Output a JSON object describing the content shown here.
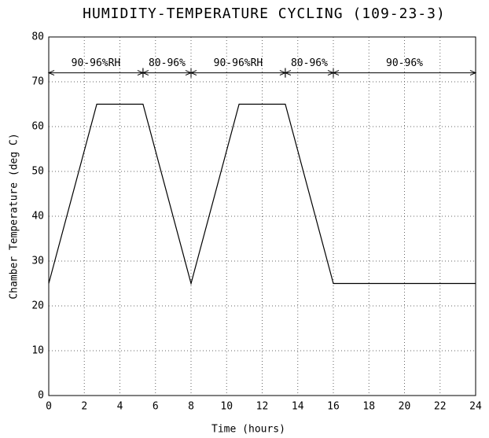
{
  "chart_data": {
    "type": "line",
    "title": "HUMIDITY-TEMPERATURE CYCLING (109-23-3)",
    "x_label": "Time (hours)",
    "y_label": "Chamber Temperature (deg C)",
    "x": [
      0,
      2.7,
      5.3,
      8,
      10.7,
      13.3,
      16,
      24
    ],
    "series": [
      {
        "name": "Chamber Temperature",
        "color": "#000000",
        "values": [
          25,
          65,
          65,
          25,
          65,
          65,
          25,
          25
        ]
      }
    ],
    "xlim": [
      0,
      24
    ],
    "xticks": [
      0,
      2,
      4,
      6,
      8,
      10,
      12,
      14,
      16,
      18,
      20,
      22,
      24
    ],
    "ylim": [
      0,
      80
    ],
    "yticks": [
      0,
      10,
      20,
      30,
      40,
      50,
      60,
      70,
      80
    ],
    "grid": true,
    "annotations": [
      {
        "text": "90-96%RH",
        "x": [
          0,
          5.3
        ],
        "y": 72
      },
      {
        "text": "80-96%",
        "x": [
          5.3,
          8
        ],
        "y": 72
      },
      {
        "text": "90-96%RH",
        "x": [
          8,
          13.3
        ],
        "y": 72
      },
      {
        "text": "80-96%",
        "x": [
          13.3,
          16
        ],
        "y": 72
      },
      {
        "text": "90-96%",
        "x": [
          16,
          24
        ],
        "y": 72
      }
    ]
  }
}
